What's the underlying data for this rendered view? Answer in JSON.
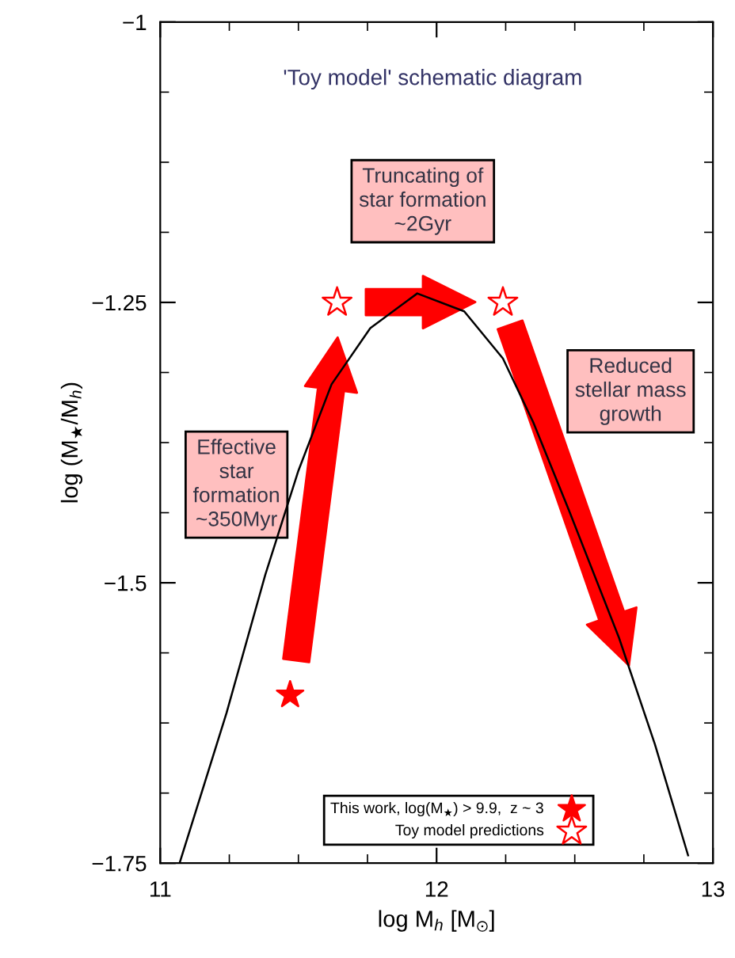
{
  "chart_data": {
    "type": "line",
    "title": "'Toy model' schematic diagram",
    "xlabel": "log M$_{h}$ [M$_{⊙}$]",
    "ylabel": "log (M$_{★}$/M$_{h}$)",
    "xlim": [
      11,
      13
    ],
    "xticks": [
      11,
      12,
      13
    ],
    "ylim": [
      -1.75,
      -1
    ],
    "yticks": [
      -1,
      -1.25,
      -1.5,
      -1.75
    ],
    "grid": false,
    "legend": "bottom",
    "annotations": [
      "Effective\nstar\nformation\n~350Myr",
      "Truncating of\nstar formation\n~2Gyr",
      "Reduced\nstellar mass\ngrowth"
    ],
    "series": [
      {
        "color": "#000000",
        "x": [
          11.07,
          11.24,
          11.38,
          11.5,
          11.62,
          11.76,
          11.93,
          12.1,
          12.24,
          12.35,
          12.48,
          12.66,
          12.79,
          12.91
        ],
        "values": [
          -1.75,
          -1.616,
          -1.493,
          -1.4,
          -1.323,
          -1.273,
          -1.242,
          -1.258,
          -1.3,
          -1.357,
          -1.436,
          -1.549,
          -1.644,
          -1.743
        ]
      },
      {
        "type": "scatter",
        "name": "This work, log(M$_{★}$) > 9.9,  z ~ 3",
        "color": "#ff0000",
        "marker": "star",
        "x": [
          11.47
        ],
        "values": [
          -1.6
        ]
      },
      {
        "type": "scatter",
        "name": "Toy model predictions",
        "color": "#ff0000",
        "marker": "star",
        "x": [
          11.64,
          12.24
        ],
        "values": [
          -1.25,
          -1.25
        ]
      }
    ]
  }
}
